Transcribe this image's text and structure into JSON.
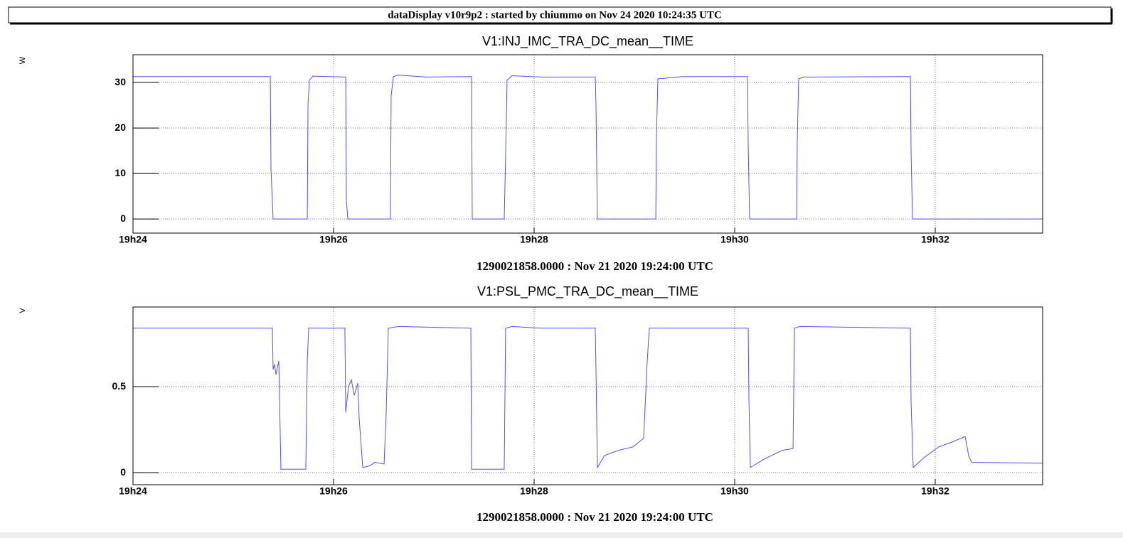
{
  "header": {
    "title": "dataDisplay v10r9p2 : started by chiummo on Nov 24 2020 10:24:35 UTC"
  },
  "chart_data": [
    {
      "type": "line",
      "title": "V1:INJ_IMC_TRA_DC_mean__TIME",
      "ylabel": "W",
      "xlabel": "1290021858.0000 : Nov 21 2020 19:24:00 UTC",
      "color": "#5050ff",
      "grid": true,
      "xlim": [
        1164,
        1173.071
      ],
      "ylim": [
        -3.1,
        36.1
      ],
      "xticks": [
        {
          "value": 1164,
          "label": "19h24"
        },
        {
          "value": 1166,
          "label": "19h26"
        },
        {
          "value": 1168,
          "label": "19h28"
        },
        {
          "value": 1170,
          "label": "19h30"
        },
        {
          "value": 1172,
          "label": "19h32"
        }
      ],
      "yticks": [
        0,
        10,
        20,
        30
      ],
      "x": [
        1164,
        1165.369,
        1165.376,
        1165.397,
        1165.738,
        1165.745,
        1165.759,
        1165.794,
        1166.121,
        1166.128,
        1166.142,
        1166.567,
        1166.574,
        1166.596,
        1166.645,
        1166.929,
        1167.376,
        1167.383,
        1167.702,
        1167.716,
        1167.73,
        1167.78,
        1168.064,
        1168.61,
        1168.617,
        1168.631,
        1169.213,
        1169.22,
        1169.234,
        1169.482,
        1170.128,
        1170.135,
        1170.149,
        1170.617,
        1170.624,
        1170.638,
        1170.688,
        1171.752,
        1171.759,
        1171.773,
        1173.071
      ],
      "values": [
        31.3,
        31.3,
        11,
        0,
        0,
        25,
        30.5,
        31.4,
        31.2,
        4,
        0,
        0,
        27,
        31.3,
        31.6,
        31.2,
        31.3,
        0,
        0,
        14,
        30.5,
        31.5,
        31.2,
        31.2,
        25,
        0,
        0,
        18,
        30.8,
        31.3,
        31.3,
        16,
        0,
        0,
        17,
        30.8,
        31.2,
        31.3,
        15,
        0,
        0
      ]
    },
    {
      "type": "line",
      "title": "V1:PSL_PMC_TRA_DC_mean__TIME",
      "ylabel": "V",
      "xlabel": "1290021858.0000 : Nov 21 2020 19:24:00 UTC",
      "color": "#5050ff",
      "grid": true,
      "xlim": [
        1164,
        1173.071
      ],
      "ylim": [
        -0.07,
        0.963
      ],
      "xticks": [
        {
          "value": 1164,
          "label": "19h24"
        },
        {
          "value": 1166,
          "label": "19h26"
        },
        {
          "value": 1168,
          "label": "19h28"
        },
        {
          "value": 1170,
          "label": "19h30"
        },
        {
          "value": 1172,
          "label": "19h32"
        }
      ],
      "yticks": [
        0,
        0.5
      ],
      "x": [
        1164,
        1165.39,
        1165.397,
        1165.411,
        1165.426,
        1165.454,
        1165.475,
        1165.723,
        1165.738,
        1165.752,
        1166.113,
        1166.121,
        1166.149,
        1166.177,
        1166.206,
        1166.241,
        1166.255,
        1166.291,
        1166.362,
        1166.411,
        1166.504,
        1166.525,
        1166.546,
        1166.645,
        1167.369,
        1167.376,
        1167.702,
        1167.716,
        1167.78,
        1168.064,
        1168.61,
        1168.617,
        1168.631,
        1168.702,
        1168.844,
        1168.986,
        1169.092,
        1169.128,
        1169.149,
        1170.135,
        1170.142,
        1170.156,
        1170.298,
        1170.475,
        1170.582,
        1170.596,
        1170.652,
        1171.752,
        1171.759,
        1171.78,
        1171.894,
        1172.035,
        1172.177,
        1172.298,
        1172.333,
        1172.362,
        1173.071
      ],
      "values": [
        0.84,
        0.84,
        0.6,
        0.63,
        0.57,
        0.65,
        0.02,
        0.02,
        0.65,
        0.84,
        0.84,
        0.35,
        0.5,
        0.54,
        0.45,
        0.52,
        0.32,
        0.03,
        0.04,
        0.06,
        0.05,
        0.35,
        0.84,
        0.85,
        0.84,
        0.02,
        0.02,
        0.84,
        0.85,
        0.84,
        0.84,
        0.6,
        0.03,
        0.1,
        0.13,
        0.15,
        0.2,
        0.65,
        0.84,
        0.84,
        0.43,
        0.03,
        0.08,
        0.13,
        0.14,
        0.84,
        0.85,
        0.84,
        0.41,
        0.03,
        0.09,
        0.15,
        0.18,
        0.21,
        0.1,
        0.06,
        0.055
      ]
    }
  ]
}
